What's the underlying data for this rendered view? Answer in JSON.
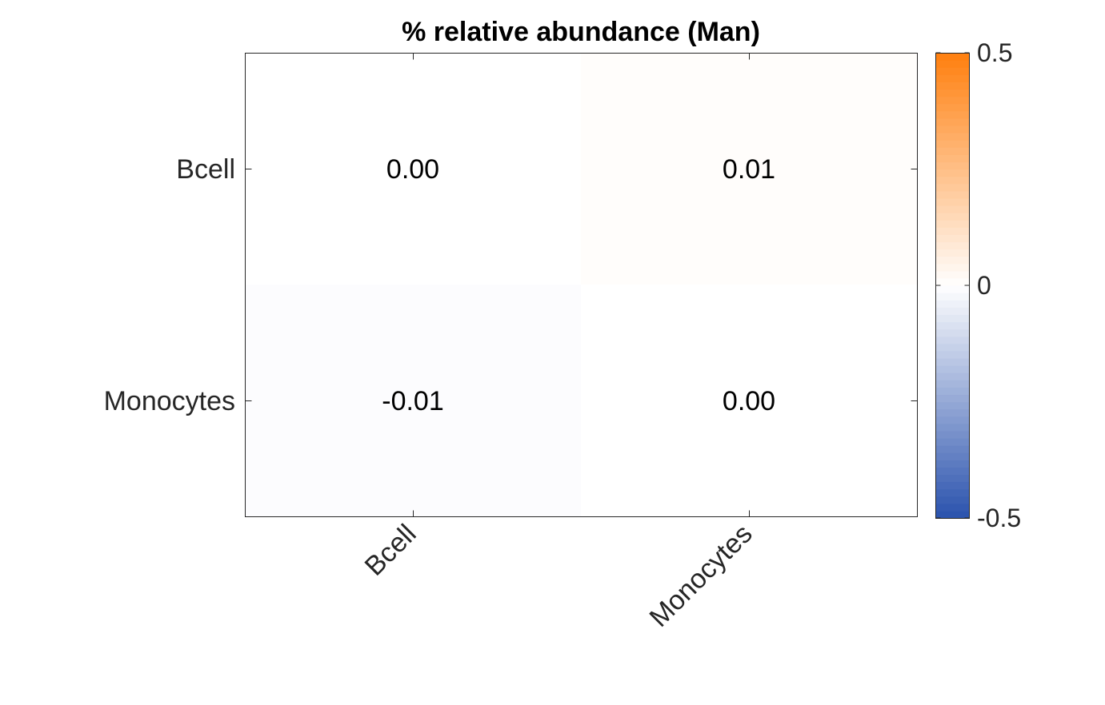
{
  "chart_data": {
    "type": "heatmap",
    "title": "% relative abundance (Man)",
    "xlabel": "",
    "ylabel": "",
    "x_categories": [
      "Bcell",
      "Monocytes"
    ],
    "y_categories": [
      "Bcell",
      "Monocytes"
    ],
    "values": [
      [
        0.0,
        0.01
      ],
      [
        -0.01,
        0.0
      ]
    ],
    "value_labels": [
      [
        "0.00",
        "0.01"
      ],
      [
        "-0.01",
        "0.00"
      ]
    ],
    "colorbar": {
      "min": -0.5,
      "max": 0.5,
      "ticks": [
        0.5,
        0,
        -0.5
      ],
      "tick_labels": [
        "0.5",
        "0",
        "-0.5"
      ],
      "low_color": "#2a52ad",
      "mid_color": "#ffffff",
      "high_color": "#ff7f0e",
      "steps": 64
    },
    "grid": false,
    "colorbar_placement": "right"
  }
}
